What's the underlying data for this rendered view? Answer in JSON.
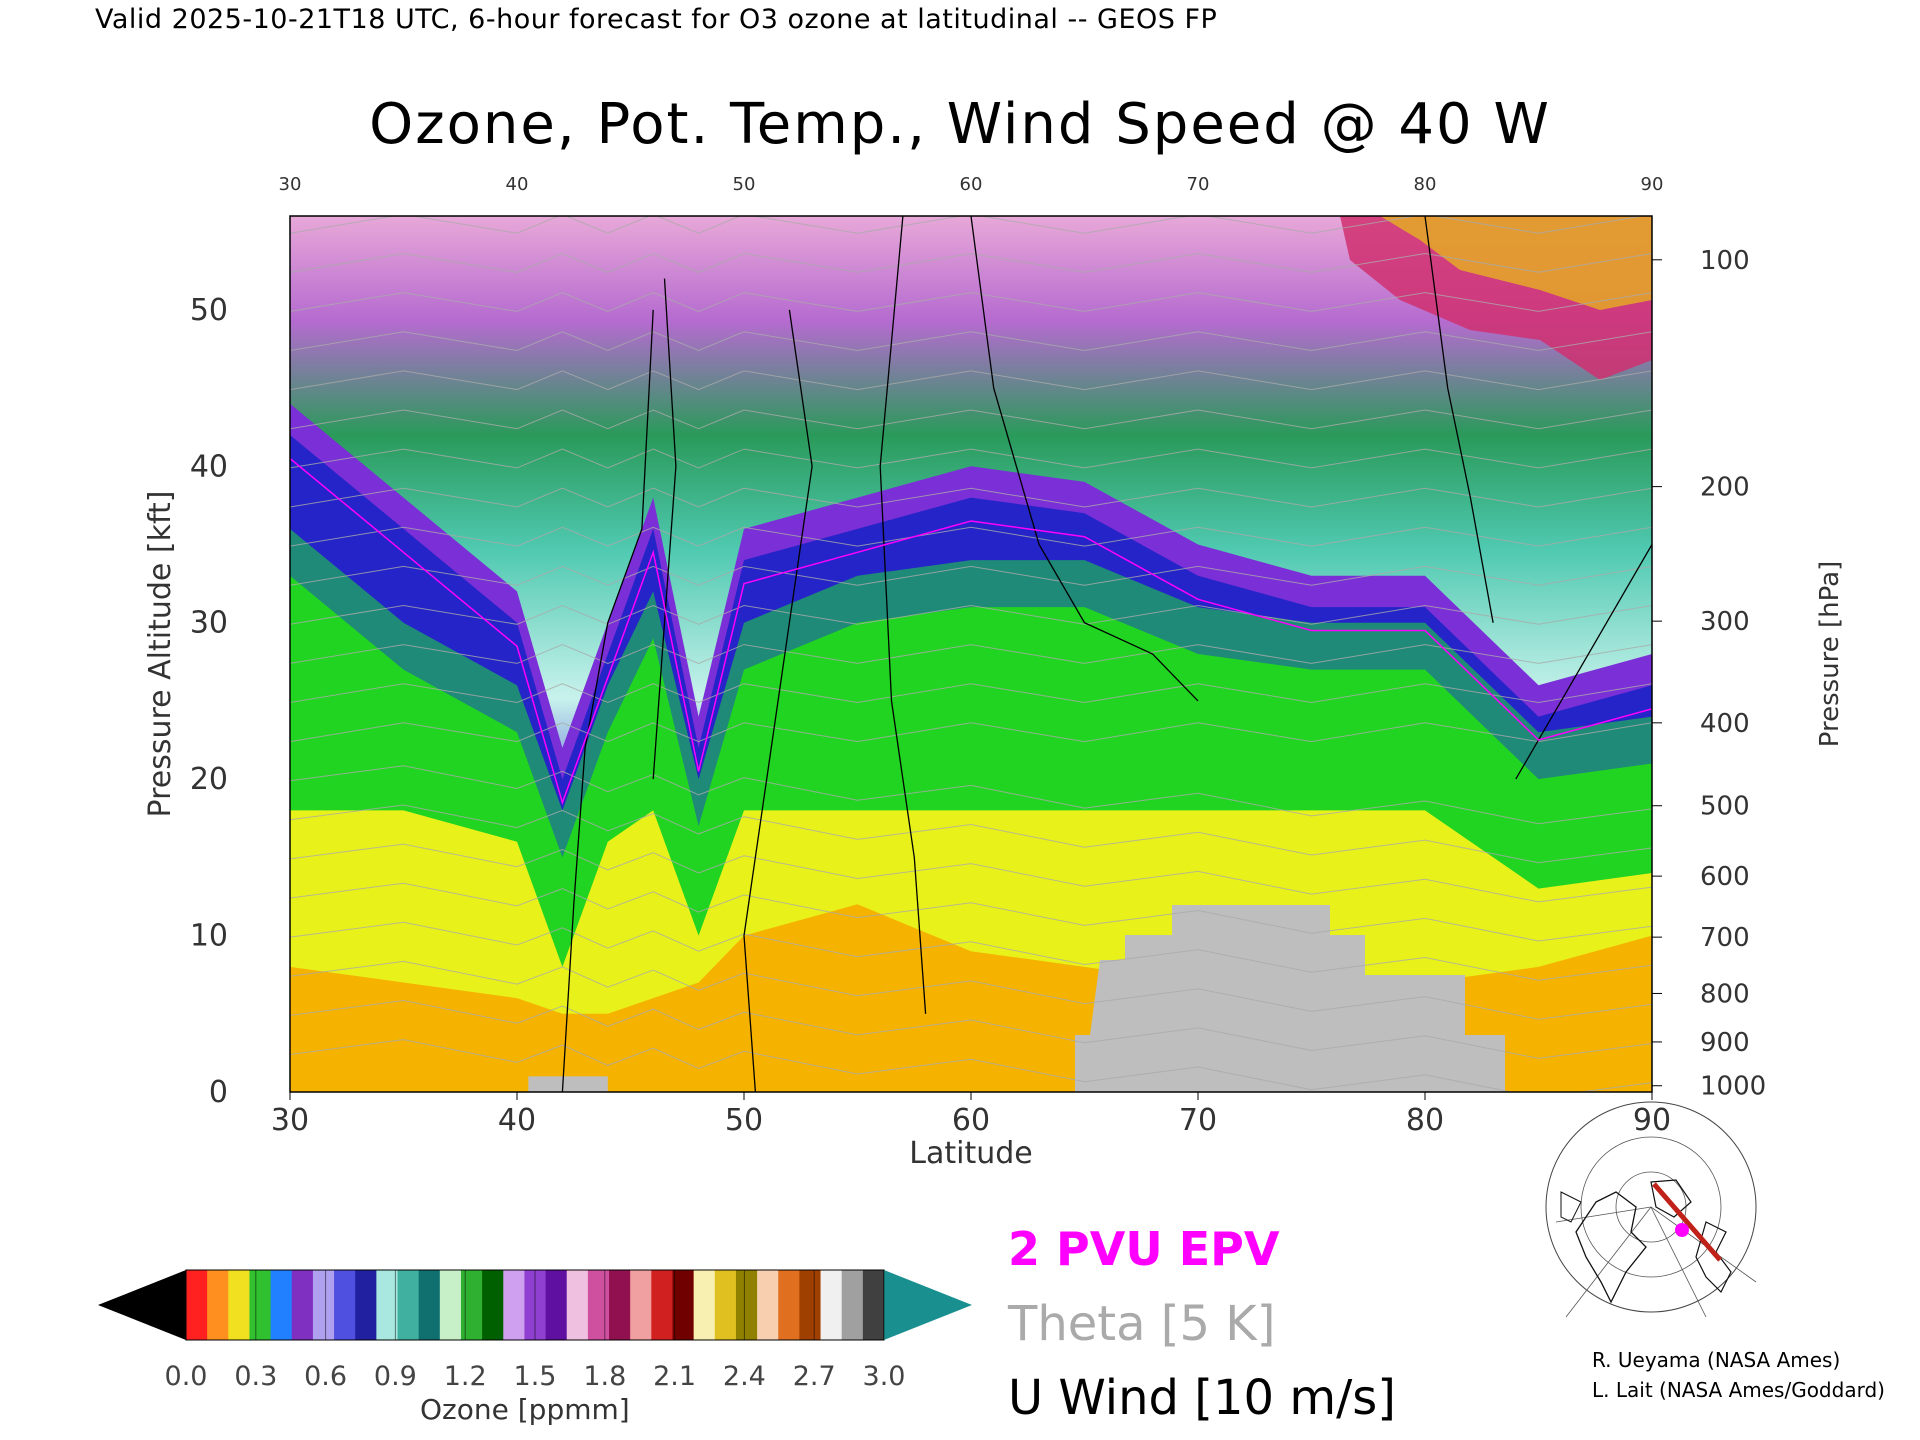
{
  "header": "Valid 2025-10-21T18 UTC, 6-hour forecast for O3 ozone at latitudinal -- GEOS FP",
  "chart_data": {
    "type": "heatmap",
    "title": "Ozone, Pot. Temp., Wind Speed @ 40 W",
    "xlabel": "Latitude",
    "ylabel": "Pressure Altitude [kft]",
    "y2label": "Pressure [hPa]",
    "xlim": [
      30,
      90
    ],
    "ylim": [
      0,
      56
    ],
    "x_ticks": [
      "30",
      "40",
      "50",
      "60",
      "70",
      "80",
      "90"
    ],
    "y_ticks": [
      "0",
      "10",
      "20",
      "30",
      "40",
      "50"
    ],
    "top_ticks": [
      "30",
      "40",
      "50",
      "60",
      "70",
      "80",
      "90"
    ],
    "pressure_ticks": [
      {
        "label": "100",
        "kft": 53.2
      },
      {
        "label": "200",
        "kft": 38.7
      },
      {
        "label": "300",
        "kft": 30.1
      },
      {
        "label": "400",
        "kft": 23.6
      },
      {
        "label": "500",
        "kft": 18.3
      },
      {
        "label": "600",
        "kft": 13.8
      },
      {
        "label": "700",
        "kft": 9.9
      },
      {
        "label": "800",
        "kft": 6.3
      },
      {
        "label": "900",
        "kft": 3.2
      },
      {
        "label": "1000",
        "kft": 0.4
      }
    ],
    "ozone_profile": {
      "latitudes": [
        30,
        35,
        40,
        42,
        44,
        46,
        48,
        50,
        55,
        60,
        65,
        70,
        75,
        80,
        85,
        90
      ],
      "tropopause_kft": [
        42,
        36,
        30,
        20,
        28,
        36,
        22,
        34,
        36,
        38,
        37,
        33,
        31,
        31,
        24,
        26
      ],
      "green_top_kft": [
        36,
        30,
        26,
        18,
        26,
        32,
        20,
        30,
        33,
        34,
        34,
        31,
        30,
        30,
        23,
        24
      ]
    },
    "legend": [
      "2 PVU EPV",
      "Theta [5 K]",
      "U Wind [10 m/s]"
    ],
    "colorbar": {
      "label": "Ozone [ppmm]",
      "ticks": [
        "0.0",
        "0.3",
        "0.6",
        "0.9",
        "1.2",
        "1.5",
        "1.8",
        "2.1",
        "2.4",
        "2.7",
        "3.0"
      ]
    }
  },
  "credits": [
    "R. Ueyama (NASA Ames)",
    "L. Lait (NASA Ames/Goddard)"
  ],
  "colors": {
    "epv": "#ff00ff",
    "theta": "#aaaaaa",
    "wind": "#000000",
    "terrain": "#bebebe",
    "map_path": "#c0221a",
    "map_point": "#ff00ff"
  }
}
